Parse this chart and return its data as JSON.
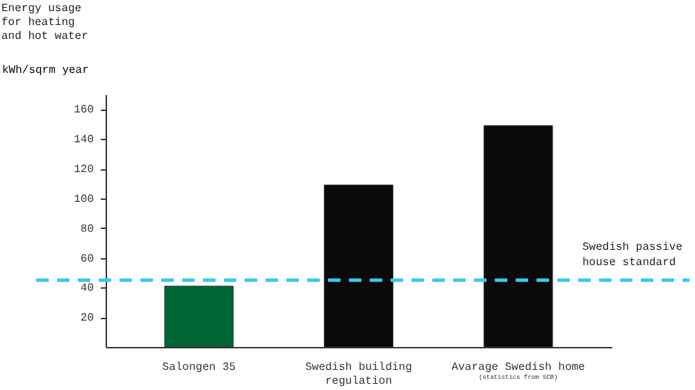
{
  "chart_data": {
    "type": "bar",
    "title": [
      "Energy usage",
      "for heating",
      "and hot water"
    ],
    "ylabel": "kWh/sqrm year",
    "categories": [
      "Salongen 35",
      "Swedish building regulation",
      "Avarage Swedish home"
    ],
    "values": [
      41,
      109,
      149
    ],
    "colors": [
      "#006633",
      "#0a0a0a",
      "#0a0a0a"
    ],
    "ylim": [
      0,
      170
    ],
    "yticks": [
      20,
      40,
      60,
      80,
      100,
      120,
      140,
      160
    ],
    "grid": false,
    "ref_lines": [
      {
        "axis": "y",
        "value": 45,
        "label": "Swedish passive house standard",
        "color": "#3cc8ec",
        "line_style": "dashed"
      }
    ],
    "annotations": [
      "(statistics from SCB)"
    ]
  }
}
